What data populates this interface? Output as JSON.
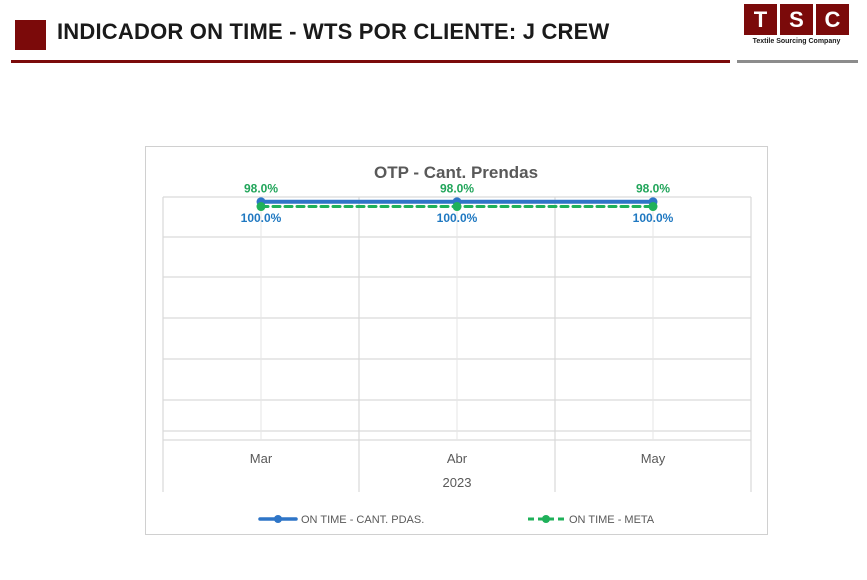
{
  "header": {
    "title": "INDICADOR ON TIME - WTS POR CLIENTE: J CREW"
  },
  "logo": {
    "letters": [
      "T",
      "S",
      "C"
    ],
    "tagline": "Textile Sourcing Company"
  },
  "colors": {
    "brand": "#7b0a0a",
    "series_actual": "#2e75c7",
    "series_meta": "#1fb15a",
    "label_actual": "#1f78c1",
    "label_meta": "#21a55a"
  },
  "chart_data": {
    "type": "line",
    "title": "OTP - Cant. Prendas",
    "categories": [
      "Mar",
      "Abr",
      "May"
    ],
    "group_label": "2023",
    "ylim": [
      0,
      1.02
    ],
    "series": [
      {
        "name": "ON TIME - CANT. PDAS.",
        "values": [
          1.0,
          1.0,
          1.0
        ],
        "labels": [
          "100.0%",
          "100.0%",
          "100.0%"
        ],
        "style": "solid"
      },
      {
        "name": "ON TIME - META",
        "values": [
          0.98,
          0.98,
          0.98
        ],
        "labels": [
          "98.0%",
          "98.0%",
          "98.0%"
        ],
        "style": "dashed"
      }
    ]
  }
}
